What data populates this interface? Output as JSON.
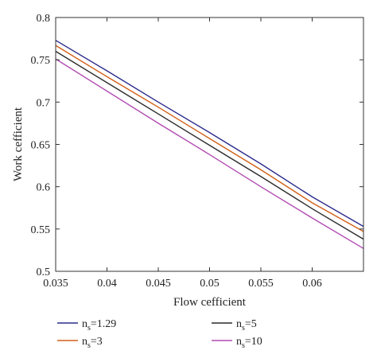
{
  "chart_data": {
    "type": "line",
    "xlabel": "Flow cefficient",
    "ylabel": "Work cefficient",
    "xlim": [
      0.035,
      0.065
    ],
    "ylim": [
      0.5,
      0.8
    ],
    "x_ticks": [
      "0.035",
      "0.04",
      "0.045",
      "0.05",
      "0.055",
      "0.06"
    ],
    "y_ticks": [
      "0.5",
      "0.55",
      "0.6",
      "0.65",
      "0.7",
      "0.75",
      "0.8"
    ],
    "grid": false,
    "legend_position": "bottom",
    "series": [
      {
        "name": "n_s=1.29",
        "color": "#2b2b8c",
        "x": [
          0.035,
          0.04,
          0.045,
          0.05,
          0.055,
          0.06,
          0.065
        ],
        "y": [
          0.773,
          0.737,
          0.7,
          0.664,
          0.627,
          0.588,
          0.553
        ]
      },
      {
        "name": "n_s=3",
        "color": "#d2601a",
        "x": [
          0.035,
          0.04,
          0.045,
          0.05,
          0.055,
          0.06,
          0.065
        ],
        "y": [
          0.767,
          0.73,
          0.694,
          0.657,
          0.62,
          0.581,
          0.547
        ]
      },
      {
        "name": "n_s=5",
        "color": "#2a2a2a",
        "x": [
          0.035,
          0.04,
          0.045,
          0.05,
          0.055,
          0.06,
          0.065
        ],
        "y": [
          0.76,
          0.723,
          0.686,
          0.649,
          0.612,
          0.574,
          0.538
        ]
      },
      {
        "name": "n_s=10",
        "color": "#b24bb2",
        "x": [
          0.035,
          0.04,
          0.045,
          0.05,
          0.055,
          0.06,
          0.065
        ],
        "y": [
          0.751,
          0.713,
          0.675,
          0.638,
          0.6,
          0.563,
          0.527
        ]
      }
    ],
    "legend": [
      {
        "base": "n",
        "sub": "s",
        "value": "=1.29",
        "color": "#2b2b8c"
      },
      {
        "base": "n",
        "sub": "s",
        "value": "=5",
        "color": "#2a2a2a"
      },
      {
        "base": "n",
        "sub": "s",
        "value": "=3",
        "color": "#d2601a"
      },
      {
        "base": "n",
        "sub": "s",
        "value": "=10",
        "color": "#b24bb2"
      }
    ]
  }
}
